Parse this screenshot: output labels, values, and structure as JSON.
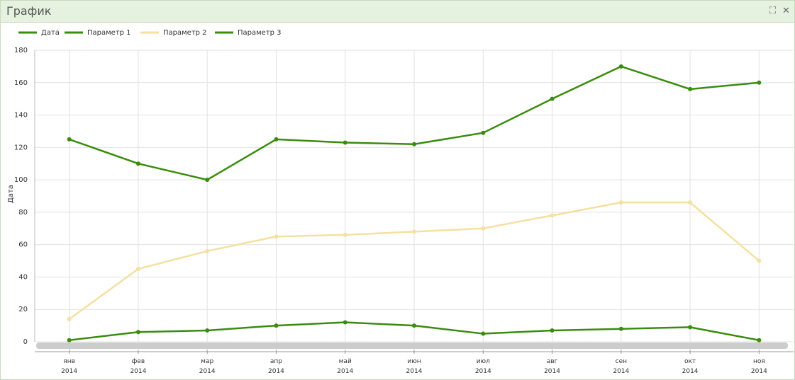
{
  "title": "График",
  "chart_data": {
    "type": "line",
    "y_label": "Дата",
    "categories": [
      "янв 2014",
      "фев 2014",
      "мар 2014",
      "апр 2014",
      "май 2014",
      "июн 2014",
      "июл 2014",
      "авг 2014",
      "сен 2014",
      "окт 2014",
      "ноя 2014"
    ],
    "series": [
      {
        "name": "Дата",
        "color": "#3a8c0f",
        "values": [
          null,
          null,
          null,
          null,
          null,
          null,
          null,
          null,
          null,
          null,
          null
        ]
      },
      {
        "name": "Параметр 1",
        "color": "#3a8c0f",
        "values": [
          125,
          110,
          100,
          125,
          123,
          122,
          129,
          150,
          170,
          156,
          160
        ]
      },
      {
        "name": "Параметр 2",
        "color": "#f5e0a0",
        "values": [
          14,
          45,
          56,
          65,
          66,
          68,
          70,
          78,
          86,
          86,
          50
        ]
      },
      {
        "name": "Параметр 3",
        "color": "#3a8c0f",
        "values": [
          1,
          6,
          7,
          10,
          12,
          10,
          5,
          7,
          8,
          9,
          1
        ]
      }
    ],
    "ylim": [
      0,
      180
    ],
    "yticks": [
      0,
      20,
      40,
      60,
      80,
      100,
      120,
      140,
      160,
      180
    ],
    "grid": true
  }
}
